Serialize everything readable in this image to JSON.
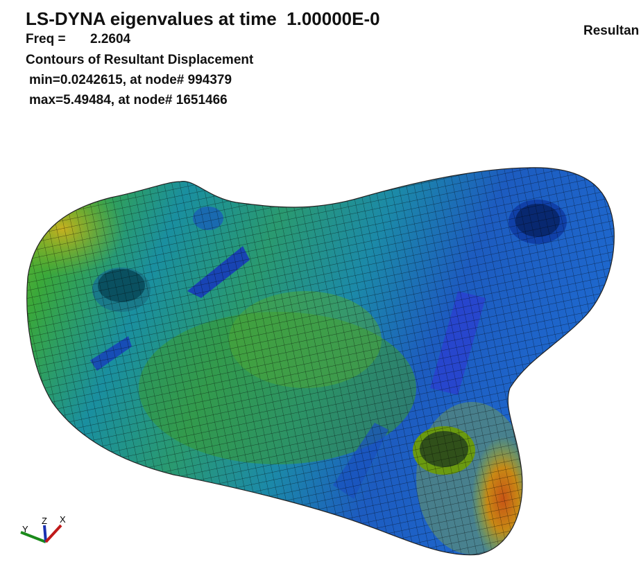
{
  "header": {
    "title": "LS-DYNA eigenvalues at time  1.00000E-0",
    "freq_label": "Freq =",
    "freq_value": "2.2604",
    "contour_label": "Contours of Resultant Displacement",
    "min_line": "min=0.0242615, at node# 994379",
    "max_line": "max=5.49484, at node# 1651466",
    "legend_title": "Resultan"
  },
  "triad": {
    "y": "Y",
    "z": "Z",
    "x": "X"
  }
}
